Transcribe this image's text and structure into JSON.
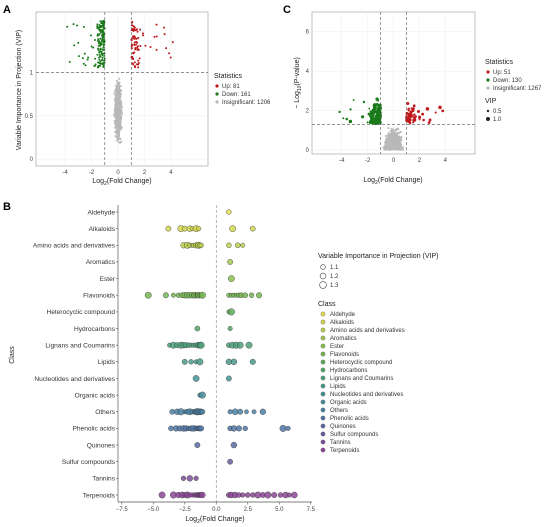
{
  "panels": {
    "A": {
      "letter": "A",
      "xlabel_main": "Log",
      "xlabel_sub": "2",
      "xlabel_rest": "(Fold Change)",
      "ylabel": "Variable Importance in Projection (VIP)",
      "legend_title": "Statistics",
      "legend_items": [
        "Up: 81",
        "Down: 161",
        "Insignificant: 1206"
      ]
    },
    "B": {
      "letter": "B",
      "xlabel_main": "Log",
      "xlabel_sub": "2",
      "xlabel_rest": "(Fold Change)",
      "ylabel": "Class",
      "vip_legend_title": "Variable Importance in Projection (VIP)",
      "vip_sizes": [
        "1.1",
        "1.2",
        "1.3"
      ],
      "class_legend_title": "Class"
    },
    "C": {
      "letter": "C",
      "xlabel_main": "Log",
      "xlabel_sub": "2",
      "xlabel_rest": "(Fold Change)",
      "ylabel_main": "− Log",
      "ylabel_sub": "10",
      "ylabel_rest": "(P-value)",
      "legend_title": "Statistics",
      "legend_items": [
        "Up: 51",
        "Down: 130",
        "Insignificant: 1267"
      ],
      "vip_title": "VIP",
      "vip_items": [
        "0.5",
        "1.0"
      ]
    }
  },
  "colors": {
    "up": "#c0181c",
    "down": "#1a7a1a",
    "insignificant": "#b8b8b8"
  },
  "chart_data": [
    {
      "panel": "A",
      "type": "scatter",
      "xlabel": "Log2(Fold Change)",
      "ylabel": "Variable Importance in Projection (VIP)",
      "xlim": [
        -6.2,
        6.8
      ],
      "ylim": [
        -0.08,
        1.7
      ],
      "xticks": [
        -4,
        -2,
        0,
        2,
        4
      ],
      "yticks": [
        0,
        0.5,
        1
      ],
      "thresholds": {
        "x": [
          -1,
          1
        ],
        "y": 1
      },
      "series": [
        {
          "name": "Up: 81",
          "count": 81
        },
        {
          "name": "Down: 161",
          "count": 161
        },
        {
          "name": "Insignificant: 1206",
          "count": 1206
        }
      ]
    },
    {
      "panel": "C",
      "type": "scatter",
      "xlabel": "Log2(Fold Change)",
      "ylabel": "−Log10(P-value)",
      "xlim": [
        -6.3,
        6.3
      ],
      "ylim": [
        -0.2,
        7
      ],
      "xticks": [
        -4,
        -2,
        0,
        2,
        4
      ],
      "yticks": [
        0,
        2,
        4,
        6
      ],
      "thresholds": {
        "x": [
          -1,
          1
        ],
        "y": 1.3
      },
      "series": [
        {
          "name": "Up: 51",
          "count": 51
        },
        {
          "name": "Down: 130",
          "count": 130
        },
        {
          "name": "Insignificant: 1267",
          "count": 1267
        }
      ]
    },
    {
      "panel": "B",
      "type": "scatter",
      "xlabel": "Log2(Fold Change)",
      "ylabel": "Class",
      "xlim": [
        -7.8,
        7.6
      ],
      "xticks": [
        -7.5,
        -5.0,
        -2.5,
        0.0,
        2.5,
        5.0,
        7.5
      ],
      "xtick_labels": [
        "−7.5",
        "−5.0",
        "−2.5",
        "0.0",
        "2.5",
        "5.0",
        "7.5"
      ],
      "categories": [
        "Aldehyde",
        "Alkaloids",
        "Amino acids and derivatives",
        "Aromatics",
        "Ester",
        "Flavonoids",
        "Heterocyclic compound",
        "Hydrocarbons",
        "Lignans and Coumarins",
        "Lipids",
        "Nucleotides and derivatives",
        "Organic acids",
        "Others",
        "Phenolic acids",
        "Quinones",
        "Sulfur compounds",
        "Tannins",
        "Terpenoids"
      ],
      "class_colors": [
        "#e6de52",
        "#d3d64e",
        "#bcd04e",
        "#a3c84f",
        "#8cc151",
        "#74b654",
        "#62ad5c",
        "#55a66a",
        "#4ea07a",
        "#4a9a89",
        "#479393",
        "#478b9c",
        "#4a82a4",
        "#5076a6",
        "#5c69a4",
        "#6a5c9e",
        "#7a4f98",
        "#8c4696"
      ],
      "points": [
        {
          "cls": "Aldehyde",
          "fc": [
            1.0
          ]
        },
        {
          "cls": "Alkaloids",
          "fc": [
            -3.8,
            -2.8,
            -2.5,
            -2.1,
            -1.9,
            -1.6,
            -1.4,
            1.3,
            2.9
          ]
        },
        {
          "cls": "Amino acids and derivatives",
          "fc": [
            -2.6,
            -2.3,
            -2.1,
            -1.9,
            -1.8,
            -1.6,
            -1.5,
            -1.4,
            -1.3,
            -1.2,
            1.0,
            1.7,
            2.1
          ]
        },
        {
          "cls": "Aromatics",
          "fc": [
            1.1
          ]
        },
        {
          "cls": "Ester",
          "fc": [
            1.2
          ]
        },
        {
          "cls": "Flavonoids",
          "fc": [
            -5.4,
            -4.0,
            -3.4,
            -3.0,
            -2.7,
            -2.5,
            -2.3,
            -2.1,
            -1.9,
            -1.8,
            -1.7,
            -1.6,
            -1.5,
            -1.4,
            -1.3,
            -1.2,
            -1.1,
            1.0,
            1.2,
            1.4,
            1.6,
            1.8,
            2.0,
            2.3,
            2.8,
            3.4
          ]
        },
        {
          "cls": "Heterocyclic compound",
          "fc": [
            1.0,
            1.2
          ]
        },
        {
          "cls": "Hydrocarbons",
          "fc": [
            -1.5,
            1.1
          ]
        },
        {
          "cls": "Lignans and Coumarins",
          "fc": [
            -3.7,
            -3.4,
            -3.1,
            -2.8,
            -2.6,
            -2.4,
            -2.2,
            -2.0,
            -1.8,
            -1.6,
            -1.4,
            -1.3,
            -1.2,
            1.0,
            1.3,
            1.6,
            1.9,
            2.6
          ]
        },
        {
          "cls": "Lipids",
          "fc": [
            -2.5,
            -2.0,
            -1.6,
            -1.3,
            1.0,
            1.4,
            2.9
          ]
        },
        {
          "cls": "Nucleotides and derivatives",
          "fc": [
            -1.6,
            1.0
          ]
        },
        {
          "cls": "Organic acids",
          "fc": [
            -1.3,
            -1.1
          ]
        },
        {
          "cls": "Others",
          "fc": [
            -3.5,
            -3.1,
            -2.8,
            -2.5,
            -2.3,
            -2.1,
            -1.9,
            -1.7,
            -1.6,
            -1.5,
            -1.4,
            -1.3,
            -1.2,
            -1.1,
            1.1,
            1.5,
            1.9,
            2.4,
            3.0,
            3.7
          ]
        },
        {
          "cls": "Phenolic acids",
          "fc": [
            -3.6,
            -3.2,
            -2.9,
            -2.6,
            -2.4,
            -2.2,
            -2.0,
            -1.8,
            -1.6,
            -1.5,
            -1.4,
            -1.3,
            -1.2,
            1.1,
            1.4,
            1.8,
            2.3,
            5.3,
            5.7
          ]
        },
        {
          "cls": "Quinones",
          "fc": [
            -1.5,
            1.4
          ]
        },
        {
          "cls": "Sulfur compounds",
          "fc": [
            1.1
          ]
        },
        {
          "cls": "Tannins",
          "fc": [
            -2.6,
            -2.1,
            -1.6
          ]
        },
        {
          "cls": "Terpenoids",
          "fc": [
            -4.3,
            -3.4,
            -3.0,
            -2.7,
            -2.5,
            -2.3,
            -2.1,
            -1.9,
            -1.7,
            -1.6,
            -1.5,
            -1.4,
            -1.3,
            -1.2,
            -1.1,
            1.0,
            1.2,
            1.5,
            1.8,
            2.1,
            2.5,
            2.9,
            3.3,
            3.7,
            4.1,
            4.6,
            5.1,
            5.5,
            5.8,
            6.2
          ]
        }
      ]
    }
  ]
}
